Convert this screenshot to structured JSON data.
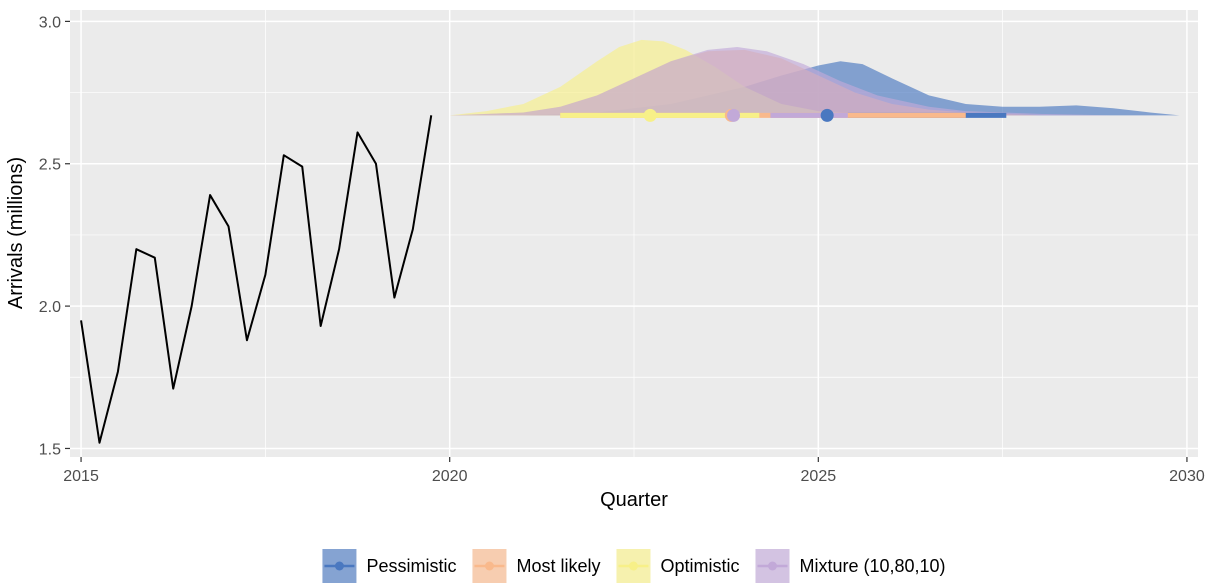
{
  "chart_data": {
    "type": "line",
    "xlabel": "Quarter",
    "ylabel": "Arrivals (millions)",
    "xlim": [
      2014.85,
      2030.15
    ],
    "ylim": [
      1.47,
      3.04
    ],
    "x_ticks": [
      2015,
      2020,
      2025,
      2030
    ],
    "x_tick_labels": [
      "2015",
      "2020",
      "2025",
      "2030"
    ],
    "y_ticks": [
      1.5,
      2.0,
      2.5,
      3.0
    ],
    "y_tick_labels": [
      "1.5",
      "2.0",
      "2.5",
      "3.0"
    ],
    "grid": true,
    "legend_position": "bottom",
    "history": {
      "x": [
        2015.0,
        2015.25,
        2015.5,
        2015.75,
        2016.0,
        2016.25,
        2016.5,
        2016.75,
        2017.0,
        2017.25,
        2017.5,
        2017.75,
        2018.0,
        2018.25,
        2018.5,
        2018.75,
        2019.0,
        2019.25,
        2019.5,
        2019.75
      ],
      "y": [
        1.95,
        1.52,
        1.77,
        2.2,
        2.17,
        1.71,
        2.0,
        2.39,
        2.28,
        1.88,
        2.11,
        2.53,
        2.49,
        1.93,
        2.2,
        2.61,
        2.5,
        2.03,
        2.27,
        2.67
      ],
      "color": "#000000"
    },
    "baseline": 2.67,
    "series": [
      {
        "name": "Pessimistic",
        "color": "#4a78c0",
        "point": 2025.12,
        "interval": [
          2025.4,
          2027.55
        ],
        "density_x": [
          2020.0,
          2021.0,
          2022.0,
          2023.0,
          2024.0,
          2024.5,
          2025.0,
          2025.3,
          2025.6,
          2026.0,
          2026.5,
          2027.0,
          2027.5,
          2028.0,
          2028.5,
          2029.0,
          2029.5,
          2029.9
        ],
        "density_y": [
          2.67,
          2.67,
          2.68,
          2.71,
          2.77,
          2.81,
          2.845,
          2.86,
          2.85,
          2.8,
          2.74,
          2.71,
          2.7,
          2.7,
          2.705,
          2.695,
          2.68,
          2.67
        ]
      },
      {
        "name": "Most likely",
        "color": "#f9b98c",
        "point": 2023.82,
        "interval": [
          2021.5,
          2027.0
        ],
        "density_x": [
          2020.0,
          2021.0,
          2021.5,
          2022.0,
          2022.5,
          2023.0,
          2023.5,
          2024.0,
          2024.5,
          2025.0,
          2025.5,
          2026.0,
          2026.5,
          2027.0,
          2028.0
        ],
        "density_y": [
          2.67,
          2.68,
          2.7,
          2.74,
          2.8,
          2.86,
          2.895,
          2.9,
          2.87,
          2.81,
          2.75,
          2.71,
          2.69,
          2.68,
          2.67
        ]
      },
      {
        "name": "Optimistic",
        "color": "#f7f088",
        "point": 2022.72,
        "interval": [
          2021.5,
          2024.2
        ],
        "density_x": [
          2020.0,
          2020.5,
          2021.0,
          2021.5,
          2022.0,
          2022.3,
          2022.6,
          2022.9,
          2023.2,
          2023.6,
          2024.0,
          2024.5,
          2025.0,
          2025.5,
          2026.0
        ],
        "density_y": [
          2.67,
          2.685,
          2.71,
          2.77,
          2.86,
          2.91,
          2.935,
          2.93,
          2.9,
          2.84,
          2.77,
          2.71,
          2.685,
          2.675,
          2.67
        ]
      },
      {
        "name": "Mixture (10,80,10)",
        "color": "#c2a9d8",
        "point": 2023.85,
        "interval": [
          2024.35,
          2025.4
        ],
        "density_x": [
          2020.0,
          2021.0,
          2021.5,
          2022.0,
          2022.5,
          2023.0,
          2023.5,
          2023.9,
          2024.3,
          2024.8,
          2025.3,
          2025.8,
          2026.5,
          2027.0,
          2028.0,
          2029.0,
          2029.8
        ],
        "density_y": [
          2.67,
          2.68,
          2.7,
          2.74,
          2.8,
          2.86,
          2.9,
          2.91,
          2.895,
          2.85,
          2.79,
          2.74,
          2.7,
          2.685,
          2.675,
          2.67,
          2.67
        ]
      }
    ]
  }
}
